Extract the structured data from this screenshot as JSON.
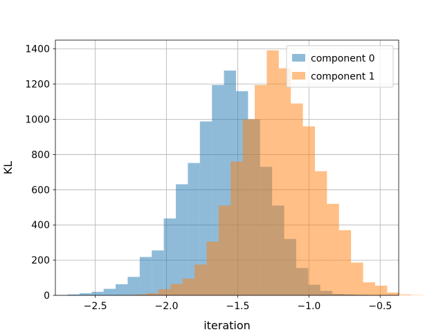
{
  "chart_data": {
    "type": "bar",
    "subtype": "histogram",
    "title": "",
    "xlabel": "iteration",
    "ylabel": "KL",
    "xlim": [
      -2.78,
      -0.37
    ],
    "ylim": [
      0,
      1450
    ],
    "xticks": [
      -2.5,
      -2.0,
      -1.5,
      -1.0,
      -0.5
    ],
    "xtick_labels": [
      "−2.5",
      "−2.0",
      "−1.5",
      "−1.0",
      "−0.5"
    ],
    "yticks": [
      0,
      200,
      400,
      600,
      800,
      1000,
      1200,
      1400
    ],
    "ytick_labels": [
      "0",
      "200",
      "400",
      "600",
      "800",
      "1000",
      "1200",
      "1400"
    ],
    "grid": true,
    "legend_position": "top-right",
    "series": [
      {
        "name": "component 0",
        "color": "#1f77b4",
        "alpha": 0.5,
        "bin_start": -2.695,
        "bin_width": 0.0845,
        "values": [
          5,
          12,
          20,
          37,
          63,
          105,
          218,
          255,
          437,
          631,
          752,
          988,
          1195,
          1277,
          1160,
          1000,
          730,
          510,
          320,
          155,
          60,
          25,
          8,
          5,
          3
        ]
      },
      {
        "name": "component 1",
        "color": "#ff7f0e",
        "alpha": 0.5,
        "bin_start": -2.31,
        "bin_width": 0.0845,
        "values": [
          2,
          5,
          12,
          35,
          65,
          95,
          175,
          305,
          510,
          760,
          1000,
          1195,
          1392,
          1290,
          1090,
          960,
          705,
          520,
          370,
          186,
          74,
          55,
          16,
          5,
          2
        ]
      }
    ]
  }
}
